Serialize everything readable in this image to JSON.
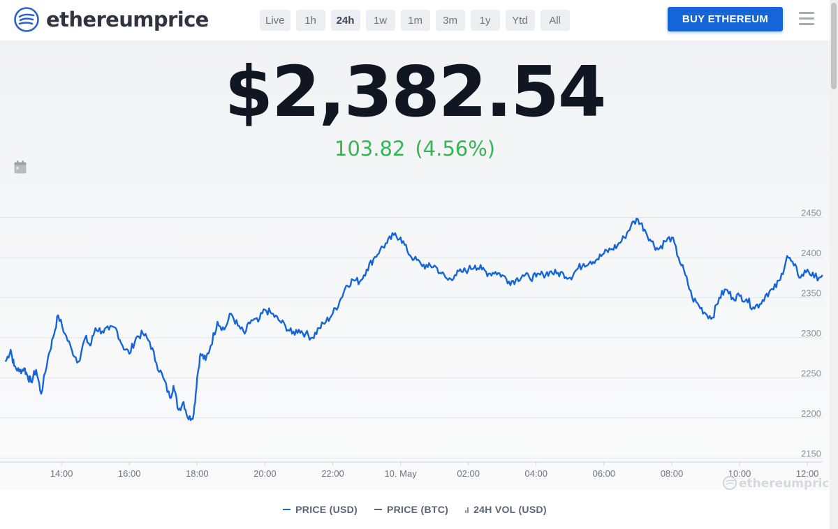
{
  "header": {
    "logo_text": "ethereumprice",
    "range_tabs": [
      "Live",
      "1h",
      "24h",
      "1w",
      "1m",
      "3m",
      "1y",
      "Ytd",
      "All"
    ],
    "active_range": "24h",
    "buy_button_label": "BUY ETHEREUM",
    "menu_icon": "hamburger-menu-icon"
  },
  "ticker": {
    "price": "$2,382.54",
    "change_abs": "103.82",
    "change_pct": "(4.56%)",
    "change_color": "#33b653"
  },
  "toolbar": {
    "calendar_icon": "calendar-icon"
  },
  "watermark_text": "ethereumprice",
  "legend": {
    "price_usd": "PRICE (USD)",
    "price_btc": "PRICE (BTC)",
    "vol_usd": "24H VOL (USD)"
  },
  "colors": {
    "accent": "#1565d8",
    "line": "#1565d8",
    "positive": "#33b653"
  },
  "chart_data": {
    "type": "line",
    "title": "",
    "xlabel": "",
    "ylabel": "",
    "x_ticks": [
      "14:00",
      "16:00",
      "18:00",
      "20:00",
      "22:00",
      "10. May",
      "02:00",
      "04:00",
      "06:00",
      "08:00",
      "10:00",
      "12:00"
    ],
    "y_ticks": [
      2150,
      2200,
      2250,
      2300,
      2350,
      2400,
      2450
    ],
    "ylim": [
      2145,
      2460
    ],
    "x_unit": "hours",
    "xlim": [
      12.35,
      36.45
    ],
    "grid": true,
    "series": [
      {
        "name": "PRICE (USD)",
        "color": "#1565d8",
        "x": [
          12.35,
          12.5,
          12.6,
          12.75,
          12.9,
          13.0,
          13.1,
          13.25,
          13.4,
          13.6,
          13.75,
          13.9,
          14.1,
          14.3,
          14.5,
          14.7,
          14.85,
          15.0,
          15.2,
          15.4,
          15.6,
          15.8,
          16.0,
          16.2,
          16.4,
          16.6,
          16.8,
          17.0,
          17.2,
          17.3,
          17.45,
          17.6,
          17.75,
          17.9,
          18.0,
          18.1,
          18.25,
          18.4,
          18.6,
          18.8,
          19.0,
          19.2,
          19.4,
          19.6,
          19.8,
          20.0,
          20.2,
          20.4,
          20.6,
          20.8,
          21.0,
          21.2,
          21.4,
          21.6,
          21.8,
          22.0,
          22.2,
          22.4,
          22.6,
          22.8,
          23.0,
          23.2,
          23.4,
          23.6,
          23.8,
          24.0,
          24.2,
          24.4,
          24.6,
          24.8,
          25.0,
          25.2,
          25.4,
          25.6,
          25.8,
          26.0,
          26.2,
          26.4,
          26.6,
          26.8,
          27.0,
          27.2,
          27.4,
          27.6,
          27.8,
          28.0,
          28.2,
          28.4,
          28.6,
          28.8,
          29.0,
          29.2,
          29.4,
          29.6,
          29.8,
          30.0,
          30.2,
          30.4,
          30.6,
          30.8,
          31.0,
          31.2,
          31.4,
          31.6,
          31.8,
          32.0,
          32.2,
          32.4,
          32.6,
          32.8,
          33.0,
          33.2,
          33.4,
          33.6,
          33.8,
          34.0,
          34.2,
          34.4,
          34.6,
          34.8,
          35.0,
          35.2,
          35.4,
          35.6,
          35.8,
          36.0,
          36.2,
          36.45
        ],
        "y": [
          2270,
          2285,
          2265,
          2258,
          2262,
          2252,
          2245,
          2260,
          2230,
          2275,
          2300,
          2328,
          2305,
          2285,
          2270,
          2300,
          2290,
          2312,
          2308,
          2310,
          2312,
          2290,
          2280,
          2300,
          2305,
          2295,
          2268,
          2250,
          2225,
          2240,
          2210,
          2220,
          2198,
          2205,
          2250,
          2280,
          2272,
          2290,
          2320,
          2310,
          2330,
          2315,
          2305,
          2322,
          2320,
          2335,
          2330,
          2322,
          2315,
          2305,
          2310,
          2305,
          2300,
          2312,
          2320,
          2330,
          2345,
          2365,
          2372,
          2370,
          2385,
          2398,
          2410,
          2418,
          2428,
          2425,
          2408,
          2398,
          2392,
          2388,
          2390,
          2380,
          2372,
          2378,
          2382,
          2385,
          2390,
          2385,
          2380,
          2382,
          2378,
          2370,
          2372,
          2378,
          2375,
          2376,
          2379,
          2382,
          2380,
          2380,
          2375,
          2385,
          2392,
          2395,
          2398,
          2405,
          2410,
          2415,
          2425,
          2440,
          2448,
          2435,
          2420,
          2410,
          2420,
          2425,
          2400,
          2378,
          2350,
          2340,
          2330,
          2325,
          2350,
          2360,
          2350,
          2352,
          2348,
          2338,
          2342,
          2355,
          2360,
          2372,
          2402,
          2390,
          2375,
          2385,
          2375,
          2378
        ]
      }
    ]
  }
}
